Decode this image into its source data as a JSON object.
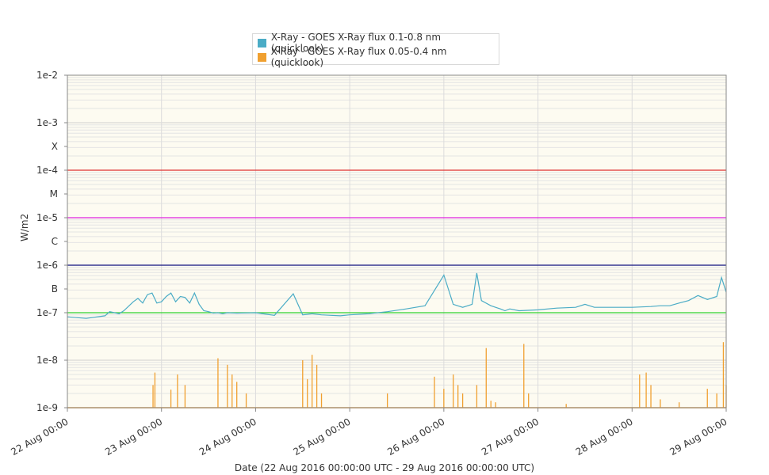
{
  "legend": [
    {
      "label": "X-Ray - GOES X-Ray flux 0.1-0.8 nm (quicklook)",
      "color": "#4bacc6"
    },
    {
      "label": "X-Ray - GOES X-Ray flux 0.05-0.4 nm (quicklook)",
      "color": "#f0a030"
    }
  ],
  "ylabel": "W/m2",
  "xtitle": "Date (22 Aug 2016 00:00:00 UTC - 29 Aug 2016 00:00:00 UTC)",
  "chart_data": {
    "type": "line",
    "y_scale": "log",
    "ylim": [
      1e-09,
      0.01
    ],
    "xlim": [
      "2016-08-22T00:00",
      "2016-08-29T00:00"
    ],
    "ytick_labels": [
      {
        "v": 0.01,
        "text": "1e-2"
      },
      {
        "v": 0.001,
        "text": "1e-3"
      },
      {
        "v": 0.0003162,
        "text": "X"
      },
      {
        "v": 0.0001,
        "text": "1e-4"
      },
      {
        "v": 3.162e-05,
        "text": "M"
      },
      {
        "v": 1e-05,
        "text": "1e-5"
      },
      {
        "v": 3.162e-06,
        "text": "C"
      },
      {
        "v": 1e-06,
        "text": "1e-6"
      },
      {
        "v": 3.162e-07,
        "text": "B"
      },
      {
        "v": 1e-07,
        "text": "1e-7"
      },
      {
        "v": 1e-08,
        "text": "1e-8"
      },
      {
        "v": 1e-09,
        "text": "1e-9"
      }
    ],
    "xtick_labels": [
      "22 Aug 00:00",
      "23 Aug 00:00",
      "24 Aug 00:00",
      "25 Aug 00:00",
      "26 Aug 00:00",
      "27 Aug 00:00",
      "28 Aug 00:00",
      "29 Aug 00:00"
    ],
    "threshold_lines": [
      {
        "value": 0.0001,
        "color": "#e03030"
      },
      {
        "value": 1e-05,
        "color": "#e020e0"
      },
      {
        "value": 1e-06,
        "color": "#101080"
      },
      {
        "value": 1e-07,
        "color": "#30d030"
      }
    ],
    "grid": true,
    "legend_position": "top-center",
    "series": [
      {
        "name": "X-Ray - GOES X-Ray flux 0.1-0.8 nm (quicklook)",
        "color": "#4bacc6",
        "x_days": [
          0.0,
          0.2,
          0.4,
          0.45,
          0.55,
          0.6,
          0.7,
          0.75,
          0.8,
          0.85,
          0.9,
          0.95,
          1.0,
          1.05,
          1.1,
          1.15,
          1.2,
          1.25,
          1.3,
          1.35,
          1.4,
          1.45,
          1.5,
          1.55,
          1.6,
          1.65,
          1.7,
          1.8,
          2.0,
          2.2,
          2.4,
          2.5,
          2.6,
          2.7,
          2.8,
          2.9,
          3.0,
          3.2,
          3.4,
          3.6,
          3.8,
          4.0,
          4.1,
          4.2,
          4.3,
          4.35,
          4.4,
          4.5,
          4.55,
          4.6,
          4.65,
          4.7,
          4.8,
          5.0,
          5.2,
          5.4,
          5.5,
          5.6,
          5.8,
          6.0,
          6.2,
          6.3,
          6.4,
          6.5,
          6.6,
          6.7,
          6.8,
          6.9,
          6.95,
          7.0
        ],
        "y": [
          8.2e-08,
          7.6e-08,
          8.6e-08,
          1.05e-07,
          9.5e-08,
          1.1e-07,
          1.7e-07,
          2e-07,
          1.6e-07,
          2.4e-07,
          2.6e-07,
          1.6e-07,
          1.7e-07,
          2.2e-07,
          2.6e-07,
          1.7e-07,
          2.2e-07,
          2.1e-07,
          1.6e-07,
          2.6e-07,
          1.5e-07,
          1.1e-07,
          1.05e-07,
          9.8e-08,
          1e-07,
          9.5e-08,
          1e-07,
          9.8e-08,
          1e-07,
          8.8e-08,
          2.5e-07,
          9e-08,
          9.5e-08,
          9e-08,
          8.8e-08,
          8.6e-08,
          9e-08,
          9.5e-08,
          1.05e-07,
          1.2e-07,
          1.4e-07,
          6.2e-07,
          1.5e-07,
          1.3e-07,
          1.5e-07,
          6.8e-07,
          1.8e-07,
          1.4e-07,
          1.3e-07,
          1.2e-07,
          1.1e-07,
          1.2e-07,
          1.1e-07,
          1.15e-07,
          1.25e-07,
          1.3e-07,
          1.5e-07,
          1.3e-07,
          1.3e-07,
          1.3e-07,
          1.35e-07,
          1.4e-07,
          1.4e-07,
          1.6e-07,
          1.8e-07,
          2.3e-07,
          1.9e-07,
          2.2e-07,
          5.5e-07,
          2.7e-07
        ]
      },
      {
        "name": "X-Ray - GOES X-Ray flux 0.05-0.4 nm (quicklook)",
        "color": "#f0a030",
        "baseline": 1e-09,
        "spikes": [
          [
            0.91,
            3e-09
          ],
          [
            0.93,
            5.5e-09
          ],
          [
            1.1,
            2.4e-09
          ],
          [
            1.17,
            5e-09
          ],
          [
            1.25,
            3e-09
          ],
          [
            1.6,
            1.1e-08
          ],
          [
            1.7,
            8e-09
          ],
          [
            1.75,
            5e-09
          ],
          [
            1.8,
            3.5e-09
          ],
          [
            1.9,
            2e-09
          ],
          [
            2.5,
            1e-08
          ],
          [
            2.55,
            4e-09
          ],
          [
            2.6,
            1.3e-08
          ],
          [
            2.65,
            8e-09
          ],
          [
            2.7,
            2e-09
          ],
          [
            3.4,
            2e-09
          ],
          [
            3.9,
            4.5e-09
          ],
          [
            4.0,
            2.5e-09
          ],
          [
            4.1,
            5e-09
          ],
          [
            4.15,
            3e-09
          ],
          [
            4.2,
            2e-09
          ],
          [
            4.35,
            3e-09
          ],
          [
            4.45,
            1.8e-08
          ],
          [
            4.5,
            1.4e-09
          ],
          [
            4.55,
            1.3e-09
          ],
          [
            4.85,
            2.2e-08
          ],
          [
            4.9,
            2e-09
          ],
          [
            5.3,
            1.2e-09
          ],
          [
            6.08,
            5e-09
          ],
          [
            6.15,
            5.5e-09
          ],
          [
            6.2,
            3e-09
          ],
          [
            6.3,
            1.5e-09
          ],
          [
            6.5,
            1.3e-09
          ],
          [
            6.8,
            2.5e-09
          ],
          [
            6.9,
            2e-09
          ],
          [
            6.97,
            2.4e-08
          ],
          [
            7.0,
            3e-09
          ]
        ]
      }
    ]
  }
}
